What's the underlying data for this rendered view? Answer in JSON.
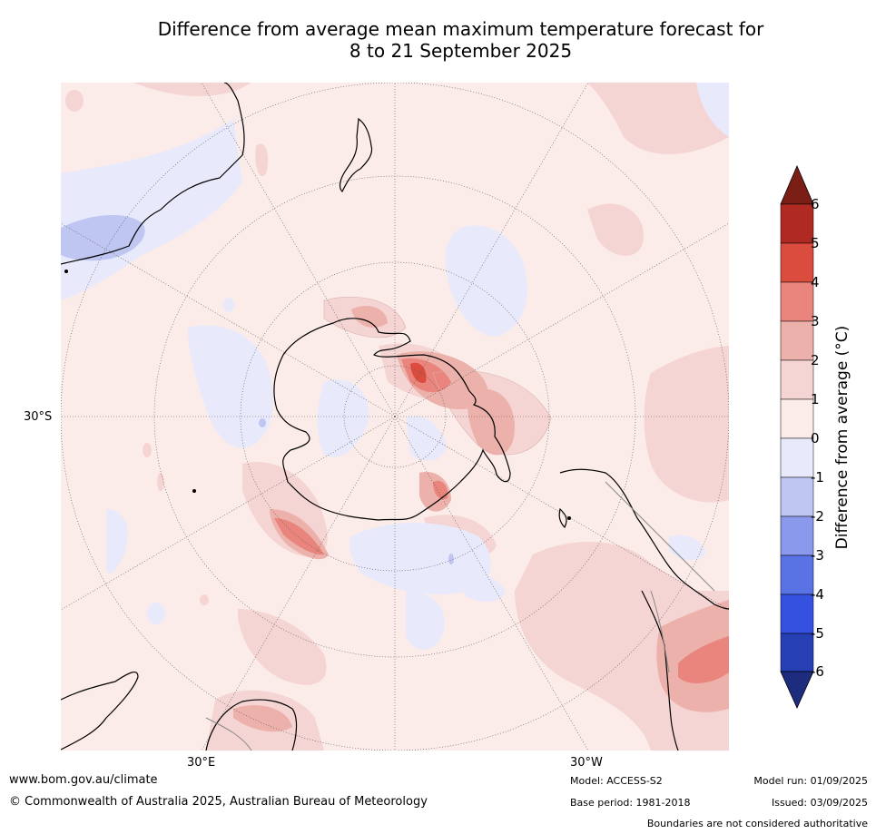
{
  "title": {
    "line1": "Difference from average mean maximum temperature forecast for",
    "line2": "8 to 21 September 2025"
  },
  "map": {
    "projection": "south-polar-stereographic",
    "lat_label": "30°S",
    "lon_labels": [
      "30°E",
      "30°W"
    ]
  },
  "colorbar": {
    "label": "Difference from average (°C)",
    "ticks": [
      "6",
      "5",
      "4",
      "3",
      "2",
      "1",
      "0",
      "-1",
      "-2",
      "-3",
      "-4",
      "-5",
      "-6"
    ],
    "colors": {
      "over": "#7b1f16",
      "5_6": "#ae2a22",
      "4_5": "#d94c3e",
      "3_4": "#e9857c",
      "2_3": "#edb1ab",
      "1_2": "#f5d5d3",
      "0_1": "#fbece9",
      "m1_0": "#e8eafc",
      "m2_m1": "#bfc6f1",
      "m3_m2": "#8a99ec",
      "m4_m3": "#5a73e4",
      "m5_m4": "#3551e0",
      "m6_m5": "#263fb2",
      "under": "#1e2c80"
    }
  },
  "footer": {
    "website": "www.bom.gov.au/climate",
    "copyright": "© Commonwealth of Australia 2025, Australian Bureau of Meteorology",
    "model": "Model: ACCESS-S2",
    "base_period": "Base period: 1981-2018",
    "model_run": "Model run: 01/09/2025",
    "issued": "Issued: 03/09/2025",
    "disclaimer": "Boundaries are not considered authoritative"
  }
}
